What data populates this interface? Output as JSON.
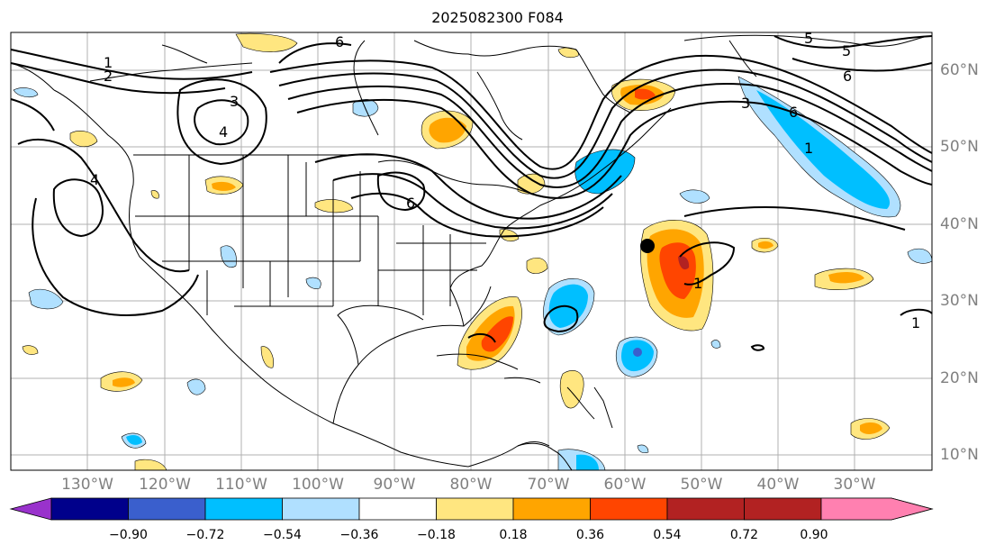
{
  "title": "2025082300 F084",
  "lon_ticks": [
    "130°W",
    "120°W",
    "110°W",
    "100°W",
    "90°W",
    "80°W",
    "70°W",
    "60°W",
    "50°W",
    "40°W",
    "30°W"
  ],
  "lat_ticks": [
    "60°N",
    "50°N",
    "40°N",
    "30°N",
    "20°N",
    "10°N"
  ],
  "colorbar": {
    "labels": [
      "−0.90",
      "−0.72",
      "−0.54",
      "−0.36",
      "−0.18",
      "0.18",
      "0.36",
      "0.54",
      "0.72",
      "0.90"
    ],
    "colors": [
      "#9932CC",
      "#00008B",
      "#3A5FCD",
      "#00BFFF",
      "#B0E0FF",
      "#FFFFFF",
      "#FFE680",
      "#FFA500",
      "#FF4500",
      "#B22222",
      "#FF80B0"
    ]
  },
  "contour_labels": [
    "1",
    "2",
    "3",
    "4",
    "6",
    "6",
    "5",
    "5",
    "6",
    "3",
    "6",
    "1",
    "1",
    "1",
    "4"
  ],
  "colors": {
    "land_outline": "#000000",
    "grid": "#b0b0b0",
    "contour": "#000000",
    "marker": "#000000"
  }
}
